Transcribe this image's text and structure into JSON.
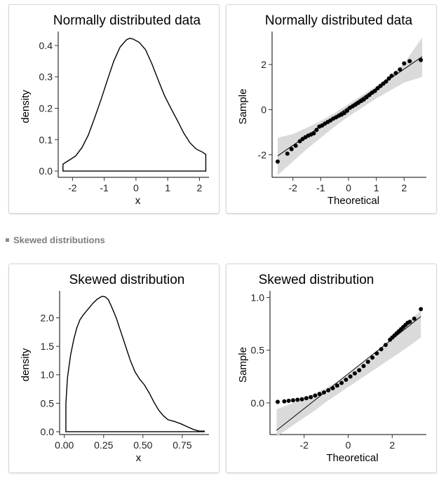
{
  "section": {
    "label": "Skewed distributions"
  },
  "chart_data": [
    {
      "type": "line",
      "subtype": "density",
      "title": "Normally distributed data",
      "xlabel": "x",
      "ylabel": "density",
      "xlim": [
        -2.45,
        2.3
      ],
      "ylim": [
        -0.02,
        0.44
      ],
      "xticks": [
        -2,
        -1,
        0,
        1,
        2
      ],
      "yticks": [
        0.0,
        0.1,
        0.2,
        0.3,
        0.4
      ],
      "ytick_labels": [
        "0.0",
        "0.1",
        "0.2",
        "0.3",
        "0.4"
      ],
      "x": [
        -2.3,
        -2.1,
        -1.9,
        -1.7,
        -1.5,
        -1.3,
        -1.1,
        -0.9,
        -0.7,
        -0.5,
        -0.3,
        -0.2,
        -0.1,
        0.1,
        0.3,
        0.5,
        0.7,
        0.9,
        1.1,
        1.3,
        1.5,
        1.7,
        1.9,
        2.1,
        2.2
      ],
      "values": [
        0.022,
        0.035,
        0.048,
        0.075,
        0.115,
        0.17,
        0.228,
        0.29,
        0.35,
        0.395,
        0.418,
        0.423,
        0.421,
        0.41,
        0.387,
        0.342,
        0.29,
        0.24,
        0.2,
        0.162,
        0.122,
        0.09,
        0.07,
        0.06,
        0.053
      ],
      "closed_baseline": true,
      "grid": false
    },
    {
      "type": "scatter",
      "subtype": "qq",
      "title": "Normally distributed data",
      "xlabel": "Theoretical",
      "ylabel": "Sample",
      "xlim": [
        -2.75,
        2.8
      ],
      "ylim": [
        -3.0,
        3.4
      ],
      "xticks": [
        -2,
        -1,
        0,
        1,
        2
      ],
      "yticks": [
        -2,
        0,
        2
      ],
      "points": {
        "x": [
          -2.55,
          -2.2,
          -2.05,
          -1.9,
          -1.75,
          -1.65,
          -1.55,
          -1.45,
          -1.35,
          -1.25,
          -1.15,
          -1.05,
          -0.95,
          -0.85,
          -0.75,
          -0.65,
          -0.55,
          -0.45,
          -0.35,
          -0.25,
          -0.15,
          -0.05,
          0.05,
          0.15,
          0.25,
          0.35,
          0.45,
          0.55,
          0.65,
          0.75,
          0.85,
          0.95,
          1.05,
          1.15,
          1.25,
          1.35,
          1.45,
          1.55,
          1.7,
          1.85,
          2.0,
          2.2,
          2.6
        ],
        "y": [
          -2.3,
          -1.95,
          -1.75,
          -1.6,
          -1.4,
          -1.3,
          -1.22,
          -1.15,
          -1.1,
          -1.05,
          -0.9,
          -0.75,
          -0.7,
          -0.62,
          -0.55,
          -0.48,
          -0.4,
          -0.34,
          -0.27,
          -0.22,
          -0.15,
          -0.05,
          0.08,
          0.15,
          0.22,
          0.3,
          0.38,
          0.45,
          0.55,
          0.65,
          0.75,
          0.83,
          0.95,
          1.05,
          1.15,
          1.25,
          1.38,
          1.5,
          1.62,
          1.78,
          2.05,
          2.15,
          2.2
        ]
      },
      "reference_line": {
        "x": [
          -2.55,
          2.65
        ],
        "y": [
          -2.05,
          2.35
        ]
      },
      "band": {
        "x": [
          -2.55,
          -2.0,
          -1.5,
          -1.0,
          -0.5,
          0.0,
          0.5,
          1.0,
          1.5,
          2.0,
          2.65
        ],
        "upper": [
          -1.25,
          -1.08,
          -0.8,
          -0.5,
          -0.15,
          0.25,
          0.65,
          1.05,
          1.5,
          2.05,
          3.2
        ],
        "lower": [
          -2.9,
          -2.3,
          -1.75,
          -1.25,
          -0.75,
          -0.3,
          0.1,
          0.5,
          0.85,
          1.2,
          1.45
        ]
      },
      "grid": false
    },
    {
      "type": "line",
      "subtype": "density",
      "title": "Skewed distribution",
      "xlabel": "x",
      "ylabel": "density",
      "xlim": [
        -0.03,
        0.92
      ],
      "ylim": [
        -0.05,
        2.45
      ],
      "xticks": [
        0.0,
        0.25,
        0.5,
        0.75
      ],
      "xtick_labels": [
        "0.00",
        "0.25",
        "0.50",
        "0.75"
      ],
      "yticks": [
        0.0,
        0.5,
        1.0,
        1.5,
        2.0
      ],
      "ytick_labels": [
        "0.0",
        "0.5",
        "1.0",
        "1.5",
        "2.0"
      ],
      "x": [
        0.01,
        0.02,
        0.04,
        0.06,
        0.08,
        0.1,
        0.12,
        0.15,
        0.18,
        0.21,
        0.24,
        0.26,
        0.28,
        0.3,
        0.33,
        0.36,
        0.39,
        0.42,
        0.45,
        0.48,
        0.51,
        0.54,
        0.57,
        0.6,
        0.63,
        0.66,
        0.7,
        0.74,
        0.78,
        0.82,
        0.86,
        0.89
      ],
      "values": [
        0.5,
        0.95,
        1.35,
        1.62,
        1.83,
        1.97,
        2.05,
        2.15,
        2.25,
        2.33,
        2.38,
        2.37,
        2.32,
        2.2,
        2.0,
        1.75,
        1.5,
        1.25,
        1.05,
        0.92,
        0.82,
        0.68,
        0.52,
        0.38,
        0.28,
        0.21,
        0.18,
        0.14,
        0.09,
        0.04,
        0.01,
        0.01
      ],
      "closed_baseline": true,
      "grid": false
    },
    {
      "type": "scatter",
      "subtype": "qq",
      "title": "Skewed distribution",
      "xlabel": "Theoretical",
      "ylabel": "Sample",
      "xlim": [
        -3.55,
        3.55
      ],
      "ylim": [
        -0.3,
        1.05
      ],
      "xticks": [
        -2,
        0,
        2
      ],
      "yticks": [
        0.0,
        0.5,
        1.0
      ],
      "ytick_labels": [
        "0.0",
        "0.5",
        "1.0"
      ],
      "points": {
        "x": [
          -3.2,
          -2.9,
          -2.7,
          -2.5,
          -2.3,
          -2.1,
          -1.9,
          -1.7,
          -1.5,
          -1.3,
          -1.1,
          -0.9,
          -0.7,
          -0.5,
          -0.3,
          -0.1,
          0.1,
          0.3,
          0.5,
          0.7,
          0.9,
          1.1,
          1.3,
          1.5,
          1.7,
          1.9,
          2.0,
          2.1,
          2.2,
          2.3,
          2.4,
          2.5,
          2.6,
          2.7,
          2.8,
          3.0,
          3.3
        ],
        "y": [
          0.01,
          0.015,
          0.02,
          0.025,
          0.03,
          0.035,
          0.045,
          0.055,
          0.07,
          0.085,
          0.1,
          0.12,
          0.14,
          0.165,
          0.19,
          0.22,
          0.25,
          0.28,
          0.31,
          0.35,
          0.39,
          0.43,
          0.47,
          0.51,
          0.55,
          0.6,
          0.62,
          0.64,
          0.66,
          0.68,
          0.7,
          0.72,
          0.74,
          0.76,
          0.77,
          0.8,
          0.89
        ]
      },
      "reference_line": {
        "x": [
          -3.25,
          3.3
        ],
        "y": [
          -0.26,
          0.82
        ]
      },
      "band": {
        "x": [
          -3.25,
          -2.5,
          -2.0,
          -1.5,
          -1.0,
          -0.5,
          0.0,
          0.5,
          1.0,
          1.5,
          2.0,
          2.5,
          3.3
        ],
        "upper": [
          -0.06,
          0.0,
          0.05,
          0.09,
          0.14,
          0.2,
          0.27,
          0.35,
          0.43,
          0.52,
          0.62,
          0.72,
          0.88
        ],
        "lower": [
          -0.32,
          -0.21,
          -0.14,
          -0.07,
          0.01,
          0.08,
          0.15,
          0.22,
          0.29,
          0.36,
          0.43,
          0.5,
          0.62
        ]
      },
      "grid": false
    }
  ]
}
